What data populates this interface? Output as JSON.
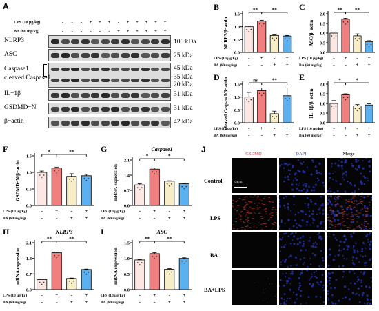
{
  "panels": {
    "A": {
      "letter": "A",
      "treatment_rows": [
        {
          "label": "LPS (10 μg/kg)",
          "signs": [
            "-",
            "-",
            "-",
            "+",
            "+",
            "+",
            "-",
            "+",
            "+",
            "+",
            "+",
            "+"
          ]
        },
        {
          "label": "BA (60 mg/kg)",
          "signs": [
            "-",
            "-",
            "-",
            "-",
            "-",
            "-",
            "+",
            "+",
            "+",
            "+",
            "+",
            "+"
          ]
        }
      ],
      "blots": [
        {
          "name": "NLRP3",
          "kda": "106 kDa"
        },
        {
          "name": "ASC",
          "kda": "25 kDa"
        },
        {
          "name": "Caspase1",
          "kda": "45 kDa"
        },
        {
          "name": "cleaved Caspase1",
          "kda": "35 kDa"
        },
        {
          "name": "",
          "kda": "20 kDa"
        },
        {
          "name": "IL−1β",
          "kda": "31 kDa"
        },
        {
          "name": "GSDMD−N",
          "kda": "31 kDa"
        },
        {
          "name": "β−actin",
          "kda": "42 kDa"
        }
      ]
    },
    "J": {
      "letter": "J",
      "columns": [
        "GSDMD",
        "DAPI",
        "Merge"
      ],
      "rows": [
        "Control",
        "LPS",
        "BA",
        "BA+LPS"
      ],
      "scale_bar": "50μm",
      "colors": {
        "gsdmd": "#c0392b",
        "dapi": "#2233aa",
        "bg": "#050505"
      }
    }
  },
  "treatment_labels": {
    "lps": "LPS (10 μg/kg)",
    "ba": "BA (60 mg/kg)"
  },
  "group_signs": {
    "lps": [
      "-",
      "+",
      "-",
      "+"
    ],
    "ba": [
      "-",
      "-",
      "+",
      "+"
    ]
  },
  "bar_colors": [
    "#fde7e4",
    "#f08080",
    "#f7eec8",
    "#5bb0f0"
  ],
  "chart_data": [
    {
      "panel": "B",
      "type": "bar",
      "ylabel": "NLRP3/β−actin",
      "ylim": [
        0,
        1.5
      ],
      "yticks": [
        "0.0",
        "0.5",
        "1.0",
        "1.5"
      ],
      "values": [
        1.0,
        1.22,
        0.66,
        0.64
      ],
      "errors": [
        0.03,
        0.03,
        0.02,
        0.02
      ],
      "sig": [
        {
          "from": 0,
          "to": 1,
          "level": 1,
          "label": "**"
        },
        {
          "from": 1,
          "to": 3,
          "level": 1,
          "label": "**"
        }
      ]
    },
    {
      "panel": "C",
      "type": "bar",
      "ylabel": "ASC/β−actin",
      "ylim": [
        0,
        2.0
      ],
      "yticks": [
        "0.0",
        "0.5",
        "1.0",
        "1.5",
        "2.0"
      ],
      "values": [
        1.0,
        1.72,
        0.86,
        0.55
      ],
      "errors": [
        0.05,
        0.05,
        0.1,
        0.06
      ],
      "sig": [
        {
          "from": 0,
          "to": 1,
          "level": 1,
          "label": "**"
        },
        {
          "from": 1,
          "to": 3,
          "level": 1,
          "label": "**"
        }
      ]
    },
    {
      "panel": "D",
      "type": "bar",
      "ylabel": "cleaved Caspase1/β−actin",
      "ylim": [
        0,
        1.5
      ],
      "yticks": [
        "0.0",
        "0.5",
        "1.0",
        "1.5"
      ],
      "values": [
        1.0,
        1.25,
        0.35,
        1.05
      ],
      "errors": [
        0.18,
        0.1,
        0.1,
        0.3
      ],
      "sig": [
        {
          "from": 0,
          "to": 1,
          "level": 1,
          "label": "ns"
        },
        {
          "from": 1,
          "to": 3,
          "level": 1,
          "label": "**"
        }
      ]
    },
    {
      "panel": "E",
      "type": "bar",
      "ylabel": "IL−1β/β−actin",
      "ylim": [
        0,
        2.0
      ],
      "yticks": [
        "0.0",
        "0.5",
        "1.0",
        "1.5",
        "2.0"
      ],
      "values": [
        1.0,
        1.45,
        0.88,
        0.92
      ],
      "errors": [
        0.15,
        0.05,
        0.06,
        0.06
      ],
      "sig": [
        {
          "from": 0,
          "to": 1,
          "level": 1,
          "label": "*"
        },
        {
          "from": 1,
          "to": 3,
          "level": 1,
          "label": "*"
        }
      ]
    },
    {
      "panel": "F",
      "type": "bar",
      "ylabel": "GSDMD−N/β−actin",
      "ylim": [
        0,
        1.5
      ],
      "yticks": [
        "0.0",
        "0.5",
        "1.0",
        "1.5"
      ],
      "values": [
        1.0,
        1.13,
        0.88,
        0.9
      ],
      "errors": [
        0.04,
        0.03,
        0.08,
        0.04
      ],
      "sig": [
        {
          "from": 0,
          "to": 1,
          "level": 1,
          "label": "*"
        },
        {
          "from": 1,
          "to": 3,
          "level": 1,
          "label": "**"
        }
      ]
    },
    {
      "panel": "G",
      "type": "bar",
      "title": "Caspase1",
      "ylabel": "mRNA expression",
      "ylim": [
        0,
        2.1
      ],
      "yticks": [
        "0.0",
        "0.7",
        "1.4",
        "2.1"
      ],
      "values": [
        0.95,
        1.68,
        1.12,
        1.0
      ],
      "errors": [
        0.05,
        0.05,
        0.02,
        0.02
      ],
      "sig": [
        {
          "from": 0,
          "to": 1,
          "level": 1,
          "label": "*"
        },
        {
          "from": 1,
          "to": 3,
          "level": 1,
          "label": "*"
        }
      ]
    },
    {
      "panel": "H",
      "type": "bar",
      "title": "NLRP3",
      "ylabel": "mRNA expression",
      "ylim": [
        0,
        2.1
      ],
      "yticks": [
        "0.0",
        "0.7",
        "1.4",
        "2.1"
      ],
      "values": [
        0.45,
        1.65,
        0.5,
        0.9
      ],
      "errors": [
        0.02,
        0.03,
        0.02,
        0.02
      ],
      "sig": [
        {
          "from": 0,
          "to": 1,
          "level": 1,
          "label": "**"
        },
        {
          "from": 1,
          "to": 3,
          "level": 1,
          "label": "**"
        }
      ]
    },
    {
      "panel": "I",
      "type": "bar",
      "title": "ASC",
      "ylabel": "mRNA expression",
      "ylim": [
        0,
        1.5
      ],
      "yticks": [
        "0.0",
        "0.5",
        "1.0",
        "1.5"
      ],
      "values": [
        0.95,
        1.15,
        0.65,
        1.0
      ],
      "errors": [
        0.02,
        0.03,
        0.02,
        0.02
      ],
      "sig": [
        {
          "from": 0,
          "to": 1,
          "level": 1,
          "label": "**"
        },
        {
          "from": 1,
          "to": 3,
          "level": 1,
          "label": "**"
        }
      ]
    }
  ]
}
